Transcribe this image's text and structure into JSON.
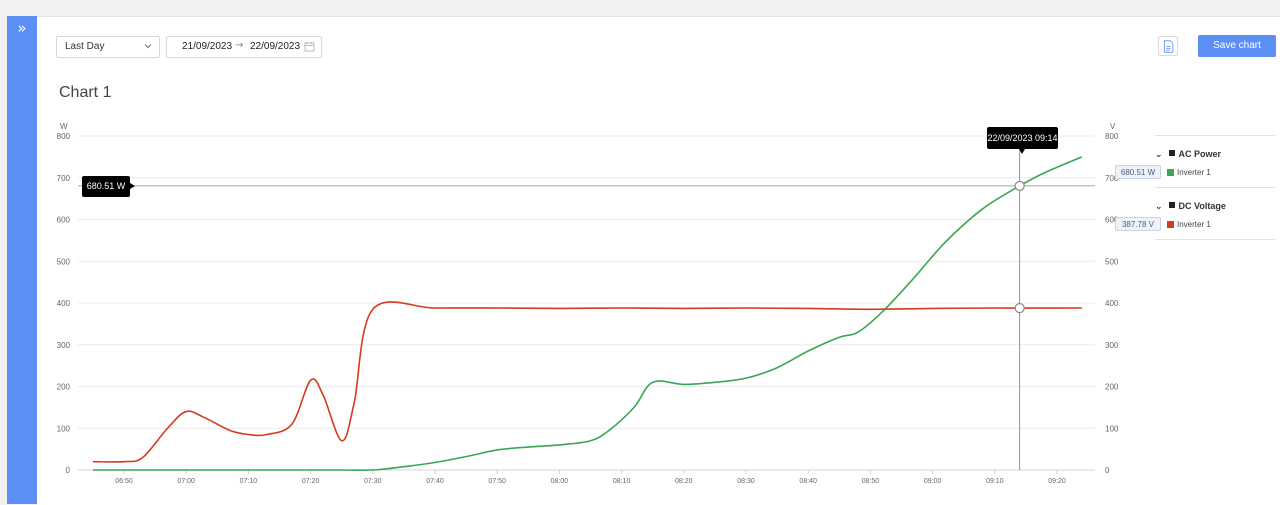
{
  "sidebar": {
    "toggle_icon": "double-chevron-right-icon",
    "color": "#5b8ff5"
  },
  "toolbar": {
    "period_select": "Last Day",
    "date_start": "21/09/2023",
    "date_end": "22/09/2023",
    "date_arrow": "→",
    "export_icon": "file-export-icon",
    "save_label": "Save chart"
  },
  "chart_title": "Chart 1",
  "tooltip": {
    "time": "22/09/2023 09:14",
    "y_value": "680.51 W"
  },
  "legend": {
    "groups": [
      {
        "name": "AC Power",
        "series": "Inverter 1",
        "value": "680.51 W",
        "color": "#3aa655"
      },
      {
        "name": "DC Voltage",
        "series": "Inverter 1",
        "value": "387.78 V",
        "color": "#d43a1f"
      }
    ]
  },
  "chart_data": {
    "type": "line",
    "left_axis": {
      "unit": "W",
      "ticks": [
        "800",
        "700",
        "600",
        "500",
        "400",
        "300",
        "200",
        "100",
        "0"
      ],
      "ylim": [
        0,
        800
      ]
    },
    "right_axis": {
      "unit": "V",
      "ticks": [
        "800",
        "700",
        "600",
        "500",
        "400",
        "300",
        "200",
        "100",
        "0"
      ],
      "ylim": [
        0,
        800
      ]
    },
    "x_ticks": [
      "06:50",
      "07:00",
      "07:10",
      "07:20",
      "07:30",
      "07:40",
      "07:50",
      "08:00",
      "08:10",
      "08:20",
      "08:30",
      "08:40",
      "08:50",
      "09:00",
      "09:10",
      "09:20"
    ],
    "grid": true,
    "series": [
      {
        "name": "AC Power",
        "color": "#3aa655",
        "points": [
          [
            "06:45",
            0
          ],
          [
            "07:00",
            0
          ],
          [
            "07:15",
            0
          ],
          [
            "07:25",
            0
          ],
          [
            "07:30",
            0
          ],
          [
            "07:35",
            8
          ],
          [
            "07:40",
            18
          ],
          [
            "07:45",
            32
          ],
          [
            "07:50",
            48
          ],
          [
            "07:55",
            55
          ],
          [
            "08:00",
            60
          ],
          [
            "08:05",
            70
          ],
          [
            "08:08",
            95
          ],
          [
            "08:12",
            150
          ],
          [
            "08:15",
            210
          ],
          [
            "08:20",
            205
          ],
          [
            "08:25",
            210
          ],
          [
            "08:30",
            220
          ],
          [
            "08:35",
            245
          ],
          [
            "08:40",
            285
          ],
          [
            "08:45",
            318
          ],
          [
            "08:48",
            330
          ],
          [
            "08:52",
            380
          ],
          [
            "08:57",
            460
          ],
          [
            "09:02",
            545
          ],
          [
            "09:08",
            625
          ],
          [
            "09:14",
            680.51
          ],
          [
            "09:18",
            712
          ],
          [
            "09:24",
            750
          ]
        ]
      },
      {
        "name": "DC Voltage",
        "color": "#d43a1f",
        "points": [
          [
            "06:45",
            20
          ],
          [
            "06:50",
            20
          ],
          [
            "06:53",
            30
          ],
          [
            "06:57",
            100
          ],
          [
            "07:00",
            140
          ],
          [
            "07:03",
            125
          ],
          [
            "07:07",
            95
          ],
          [
            "07:10",
            85
          ],
          [
            "07:13",
            85
          ],
          [
            "07:17",
            110
          ],
          [
            "07:20",
            215
          ],
          [
            "07:22",
            180
          ],
          [
            "07:25",
            70
          ],
          [
            "07:27",
            160
          ],
          [
            "07:30",
            385
          ],
          [
            "07:40",
            388
          ],
          [
            "07:50",
            388
          ],
          [
            "08:00",
            387
          ],
          [
            "08:10",
            388
          ],
          [
            "08:20",
            387
          ],
          [
            "08:30",
            388
          ],
          [
            "08:40",
            387
          ],
          [
            "08:50",
            385
          ],
          [
            "09:00",
            387
          ],
          [
            "09:10",
            388
          ],
          [
            "09:14",
            387.78
          ],
          [
            "09:24",
            388
          ]
        ]
      }
    ]
  }
}
